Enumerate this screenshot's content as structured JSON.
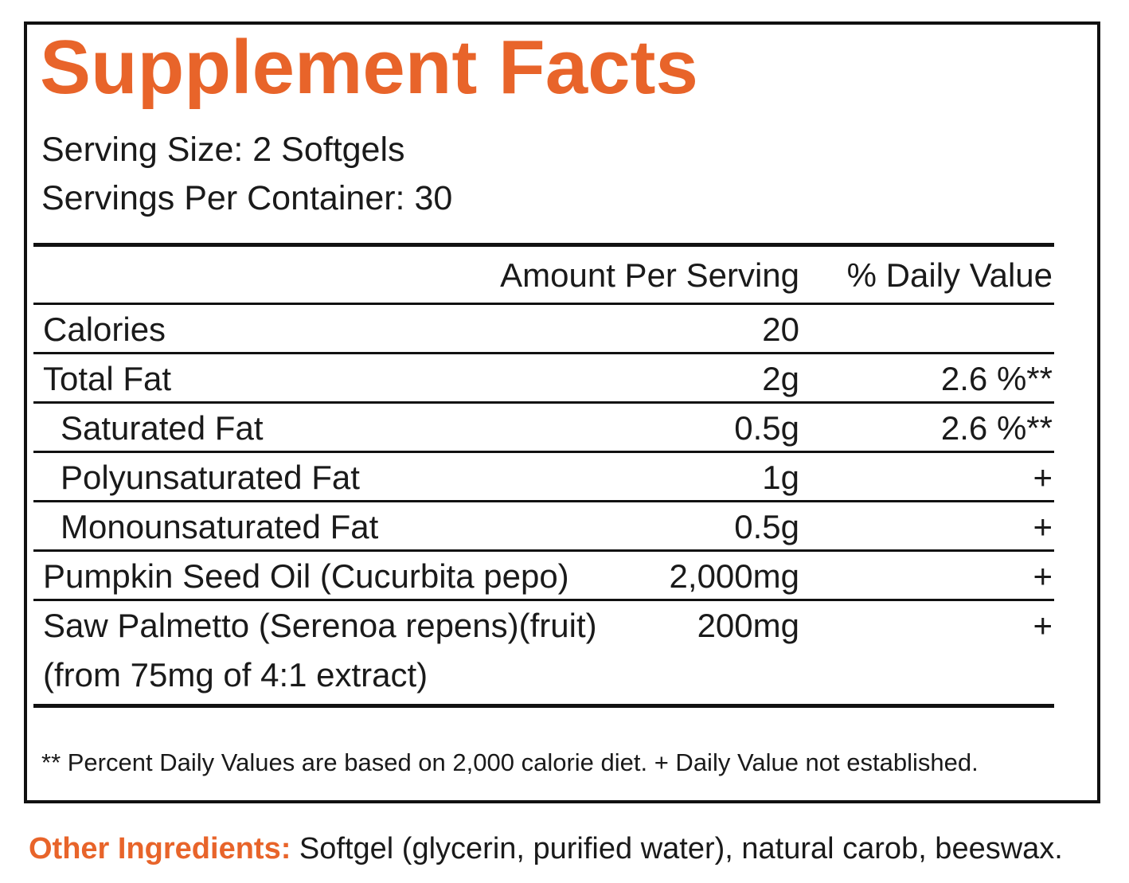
{
  "panel": {
    "title": "Supplement Facts",
    "serving_size": "Serving Size: 2 Softgels",
    "servings_per_container": "Servings Per Container: 30"
  },
  "table": {
    "header": {
      "amount": "Amount Per Serving",
      "daily_value": "% Daily Value"
    },
    "rows": [
      {
        "name": "Calories",
        "amount": "20",
        "dv": ""
      },
      {
        "name": "Total Fat",
        "amount": "2g",
        "dv": "2.6 %**"
      },
      {
        "name": "Saturated Fat",
        "amount": "0.5g",
        "dv": "2.6 %**"
      },
      {
        "name": "Polyunsaturated Fat",
        "amount": "1g",
        "dv": "+"
      },
      {
        "name": "Monounsaturated Fat",
        "amount": "0.5g",
        "dv": "+"
      },
      {
        "name": "Pumpkin Seed Oil (Cucurbita pepo)",
        "amount": "2,000mg",
        "dv": "+"
      },
      {
        "name": "Saw Palmetto (Serenoa repens)(fruit)",
        "name_line2": "(from 75mg of 4:1 extract)",
        "amount": "200mg",
        "dv": "+"
      }
    ]
  },
  "footnote": "** Percent Daily Values are based on 2,000 calorie diet. + Daily Value not established.",
  "other_ingredients": {
    "label": "Other Ingredients:",
    "text": " Softgel (glycerin, purified water), natural carob, beeswax."
  },
  "colors": {
    "accent": "#e8642a",
    "border": "#111111"
  }
}
